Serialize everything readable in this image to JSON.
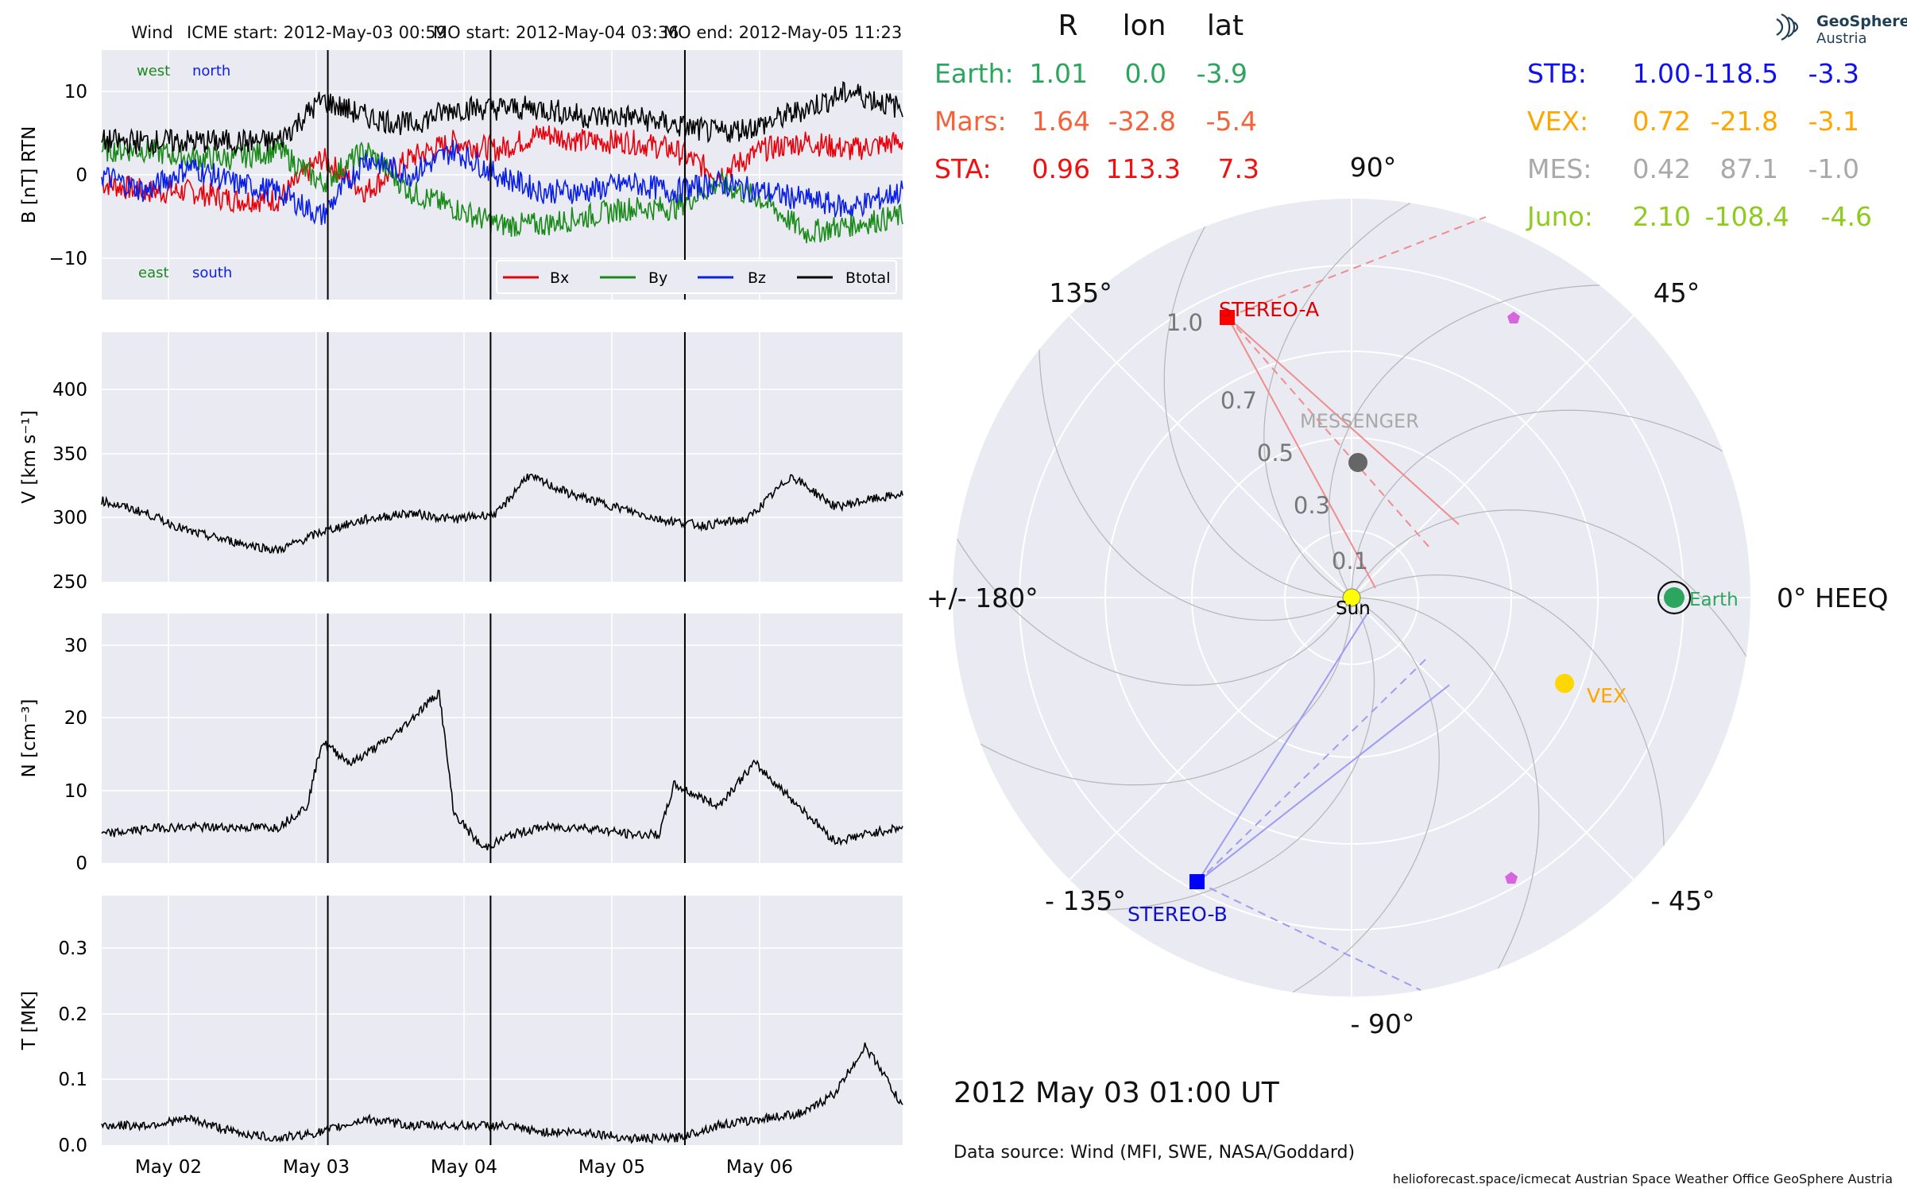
{
  "header": {
    "spacecraft": "Wind",
    "icme_start": "ICME start: 2012-May-03 00:59",
    "mo_start": "MO start: 2012-May-04 03:36",
    "mo_end": "MO end: 2012-May-05 11:23"
  },
  "logo": {
    "line1": "GeoSphere",
    "line2": "Austria"
  },
  "timestamp": "2012 May 03  01:00 UT",
  "data_source": "Data source: Wind (MFI, SWE, NASA/Goddard)",
  "footer": "helioforecast.space/icmecat   Austrian Space Weather Office   GeoSphere Austria",
  "colors": {
    "bx": "#e8000b",
    "by": "#1a8a1a",
    "bz": "#0a1fe6",
    "btotal": "#000000",
    "panel_bg": "#eaeaf2"
  },
  "position_table": {
    "headers": [
      "R",
      "lon",
      "lat"
    ],
    "left": [
      {
        "label": "Earth:",
        "r": "1.01",
        "lon": "0.0",
        "lat": "-3.9",
        "color": "#2ca55e"
      },
      {
        "label": "Mars:",
        "r": "1.64",
        "lon": "-32.8",
        "lat": "-5.4",
        "color": "#f4623a"
      },
      {
        "label": "STA:",
        "r": "0.96",
        "lon": "113.3",
        "lat": "7.3",
        "color": "#ee1111"
      }
    ],
    "right": [
      {
        "label": "STB:",
        "r": "1.00",
        "lon": "-118.5",
        "lat": "-3.3",
        "color": "#1111ee"
      },
      {
        "label": "VEX:",
        "r": "0.72",
        "lon": "-21.8",
        "lat": "-3.1",
        "color": "#ffa500"
      },
      {
        "label": "MES:",
        "r": "0.42",
        "lon": "87.1",
        "lat": "-1.0",
        "color": "#a9a9a9"
      },
      {
        "label": "Juno:",
        "r": "2.10",
        "lon": "-108.4",
        "lat": "-4.6",
        "color": "#8fca1e"
      }
    ]
  },
  "chart_data": [
    {
      "type": "line",
      "panel": "B",
      "ylabel": "B [nT] RTN",
      "ylim": [
        -15,
        15
      ],
      "yticks": [
        "10",
        "0",
        "−10"
      ],
      "x_dates": [
        "May 02",
        "May 03",
        "May 04",
        "May 05",
        "May 06"
      ],
      "xlim": [
        "2012-05-01 12:00",
        "2012-05-06 23:00"
      ],
      "event_lines": [
        "2012-05-03 00:59",
        "2012-05-04 03:36",
        "2012-05-05 11:23"
      ],
      "annotations": {
        "west": "west",
        "north": "north",
        "east": "east",
        "south": "south"
      },
      "series": [
        {
          "name": "Bx",
          "t": [
            0.0,
            0.3,
            0.6,
            0.9,
            1.2,
            1.5,
            1.8,
            2.1,
            2.4,
            2.7,
            3.0,
            3.3,
            3.6,
            3.9,
            4.2,
            4.5,
            4.8,
            5.1,
            5.45
          ],
          "values": [
            -1,
            -2,
            -2,
            -3,
            -3,
            2,
            -2,
            2,
            4,
            3,
            5,
            4,
            4,
            3,
            0,
            3,
            4,
            3,
            4
          ]
        },
        {
          "name": "By",
          "t": [
            0.0,
            0.3,
            0.6,
            0.9,
            1.2,
            1.5,
            1.8,
            2.1,
            2.4,
            2.7,
            3.0,
            3.3,
            3.6,
            3.9,
            4.2,
            4.5,
            4.8,
            5.1,
            5.45
          ],
          "values": [
            3,
            3,
            2,
            2,
            3,
            -1,
            3,
            -2,
            -4,
            -6,
            -6,
            -5,
            -4,
            -4,
            -1,
            -3,
            -7,
            -6,
            -5
          ]
        },
        {
          "name": "Bz",
          "t": [
            0.0,
            0.3,
            0.6,
            0.9,
            1.2,
            1.5,
            1.8,
            2.1,
            2.4,
            2.7,
            3.0,
            3.3,
            3.6,
            3.9,
            4.2,
            4.5,
            4.8,
            5.1,
            5.45
          ],
          "values": [
            0,
            -2,
            1,
            -1,
            -2,
            -5,
            2,
            0,
            3,
            0,
            -2,
            -2,
            -1,
            -2,
            -1,
            -2,
            -3,
            -4,
            -2
          ]
        },
        {
          "name": "Btotal",
          "t": [
            0.0,
            0.3,
            0.6,
            0.9,
            1.2,
            1.5,
            1.8,
            2.1,
            2.4,
            2.7,
            3.0,
            3.3,
            3.6,
            3.9,
            4.2,
            4.5,
            4.8,
            5.1,
            5.45
          ],
          "values": [
            4,
            4,
            4,
            4,
            4,
            9,
            7,
            6,
            8,
            8,
            8,
            7,
            7,
            6,
            5,
            6,
            8,
            10,
            8
          ]
        }
      ]
    },
    {
      "type": "line",
      "panel": "V",
      "ylabel": "V [km s⁻¹]",
      "ylim": [
        250,
        450
      ],
      "yticks": [
        "400",
        "350",
        "300",
        "250"
      ],
      "series": [
        {
          "name": "V",
          "t": [
            0.0,
            0.3,
            0.6,
            0.9,
            1.2,
            1.5,
            1.8,
            2.1,
            2.4,
            2.7,
            2.9,
            3.2,
            3.5,
            3.8,
            4.1,
            4.4,
            4.7,
            5.0,
            5.2,
            5.45
          ],
          "values": [
            315,
            305,
            290,
            282,
            275,
            290,
            300,
            305,
            300,
            305,
            335,
            320,
            310,
            300,
            295,
            300,
            335,
            310,
            315,
            320
          ]
        }
      ]
    },
    {
      "type": "line",
      "panel": "N",
      "ylabel": "N [cm⁻³]",
      "ylim": [
        0,
        35
      ],
      "yticks": [
        "30",
        "20",
        "10",
        "0"
      ],
      "series": [
        {
          "name": "N",
          "t": [
            0.0,
            0.4,
            0.8,
            1.2,
            1.4,
            1.5,
            1.7,
            2.0,
            2.3,
            2.4,
            2.6,
            2.8,
            3.0,
            3.3,
            3.6,
            3.8,
            3.9,
            4.2,
            4.45,
            4.8,
            5.0,
            5.2,
            5.45
          ],
          "values": [
            4,
            5,
            5,
            5,
            8,
            17,
            14,
            18,
            24,
            7,
            2,
            4,
            5,
            5,
            4,
            4,
            11,
            8,
            14,
            7,
            3,
            4,
            5
          ]
        }
      ]
    },
    {
      "type": "line",
      "panel": "T",
      "ylabel": "T [MK]",
      "ylim": [
        0,
        0.38
      ],
      "yticks": [
        "0.3",
        "0.2",
        "0.1",
        "0.0"
      ],
      "series": [
        {
          "name": "T",
          "t": [
            0.0,
            0.3,
            0.6,
            0.9,
            1.2,
            1.5,
            1.8,
            2.1,
            2.4,
            2.7,
            3.0,
            3.3,
            3.6,
            3.9,
            4.2,
            4.5,
            4.8,
            5.0,
            5.2,
            5.3,
            5.45
          ],
          "values": [
            0.03,
            0.03,
            0.04,
            0.02,
            0.01,
            0.02,
            0.04,
            0.03,
            0.03,
            0.03,
            0.02,
            0.02,
            0.01,
            0.01,
            0.03,
            0.04,
            0.05,
            0.08,
            0.15,
            0.12,
            0.06
          ]
        }
      ]
    },
    {
      "type": "scatter",
      "panel": "orbit",
      "projection": "polar",
      "angle_labels": {
        "a90": "90°",
        "a45": "45°",
        "a0": "0° HEEQ",
        "am45": "- 45°",
        "am90": "- 90°",
        "am135": "- 135°",
        "a180": "+/- 180°",
        "a135": "135°"
      },
      "radial_ticks": [
        "1.0",
        "0.7",
        "0.5",
        "0.3",
        "0.1"
      ],
      "rlim": [
        0,
        1.2
      ],
      "bodies": [
        {
          "name": "Sun",
          "r": 0.0,
          "lon": 0
        },
        {
          "name": "Earth",
          "r": 1.01,
          "lon": 0.0
        },
        {
          "name": "VEX",
          "r": 0.72,
          "lon": -21.8
        },
        {
          "name": "MESSENGER",
          "r": 0.42,
          "lon": 87.1
        },
        {
          "name": "STEREO-A",
          "r": 0.96,
          "lon": 113.3
        },
        {
          "name": "STEREO-B",
          "r": 1.0,
          "lon": -118.5
        }
      ]
    }
  ]
}
